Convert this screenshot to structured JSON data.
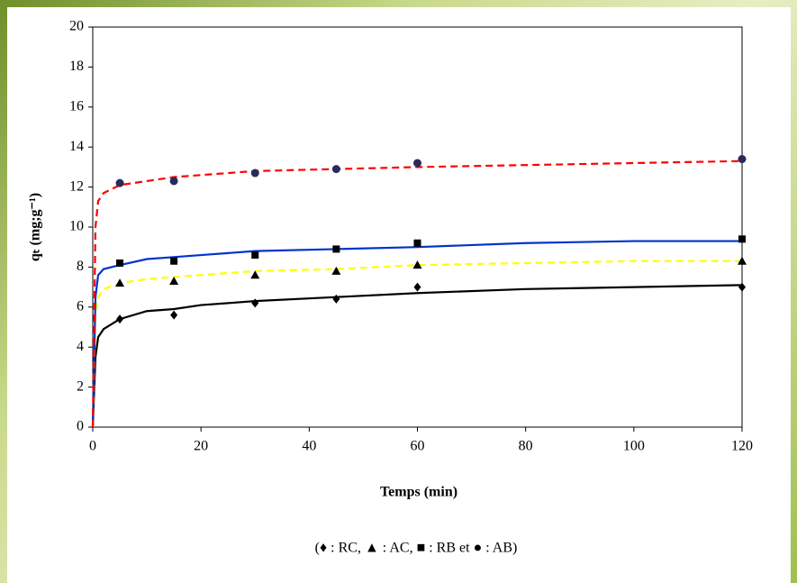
{
  "chart_data": {
    "type": "scatter",
    "x_label": "Temps (min)",
    "y_label": "qₜ (mg;g⁻¹)",
    "legend_text": "(♦ : RC, ▲ : AC, ■ : RB et ● : AB)",
    "xlim": [
      0,
      120
    ],
    "xticks": [
      0,
      20,
      40,
      60,
      80,
      100,
      120
    ],
    "ylim": [
      0,
      20
    ],
    "yticks": [
      0,
      2,
      4,
      6,
      8,
      10,
      12,
      14,
      16,
      18,
      20
    ],
    "x": [
      5,
      15,
      30,
      45,
      60,
      120
    ],
    "series": [
      {
        "marker": "diamond",
        "color": "#000000",
        "values": [
          5.4,
          5.6,
          6.2,
          6.4,
          7.0,
          7.0
        ]
      },
      {
        "marker": "triangle",
        "color": "#000000",
        "values": [
          7.2,
          7.3,
          7.6,
          7.8,
          8.1,
          8.3
        ]
      },
      {
        "marker": "square",
        "color": "#000000",
        "values": [
          8.2,
          8.3,
          8.6,
          8.9,
          9.2,
          9.4
        ]
      },
      {
        "marker": "circle",
        "color": "#2a2a5a",
        "values": [
          12.2,
          12.3,
          12.7,
          12.9,
          13.2,
          13.4
        ]
      }
    ],
    "fit_x": [
      0,
      0.5,
      1,
      2,
      5,
      10,
      15,
      20,
      30,
      45,
      60,
      80,
      100,
      120
    ],
    "fits": [
      {
        "color": "#000000",
        "dashed": false,
        "values": [
          0,
          3.5,
          4.5,
          4.9,
          5.4,
          5.8,
          5.9,
          6.1,
          6.3,
          6.5,
          6.7,
          6.9,
          7.0,
          7.1
        ]
      },
      {
        "color": "#ffff00",
        "dashed": true,
        "values": [
          0,
          5.5,
          6.5,
          6.9,
          7.2,
          7.4,
          7.5,
          7.6,
          7.8,
          7.9,
          8.1,
          8.2,
          8.3,
          8.3
        ]
      },
      {
        "color": "#0033cc",
        "dashed": false,
        "values": [
          0,
          6.5,
          7.6,
          7.9,
          8.1,
          8.4,
          8.5,
          8.6,
          8.8,
          8.9,
          9.0,
          9.2,
          9.3,
          9.3
        ]
      },
      {
        "color": "#ff0000",
        "dashed": true,
        "values": [
          0,
          10,
          11.3,
          11.7,
          12.1,
          12.3,
          12.5,
          12.6,
          12.8,
          12.9,
          13.0,
          13.1,
          13.2,
          13.3
        ]
      }
    ]
  }
}
